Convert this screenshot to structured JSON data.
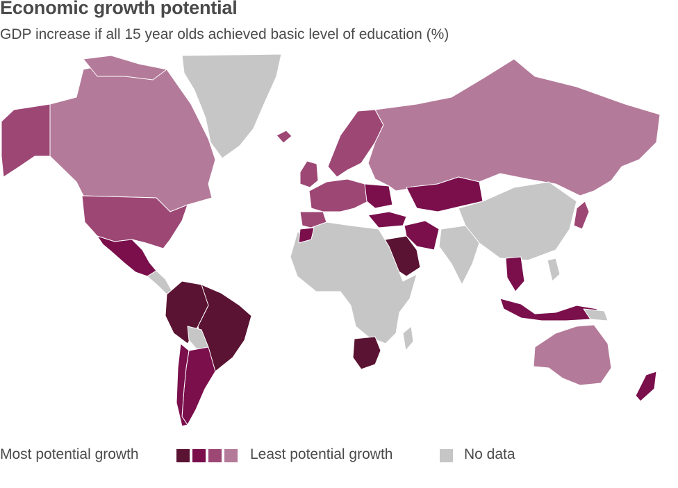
{
  "title": "Economic growth potential",
  "subtitle": "GDP increase if all 15 year olds achieved basic level of education (%)",
  "legend": {
    "most_label": "Most potential growth",
    "least_label": "Least potential growth",
    "nodata_label": "No data"
  },
  "colors": {
    "level_1": "#5a1332",
    "level_2": "#7a0f4c",
    "level_3": "#9d4775",
    "level_4": "#b47a9a",
    "no_data": "#c6c6c6",
    "border": "#ffffff"
  },
  "regions": [
    {
      "name": "Greenland",
      "level": "no_data"
    },
    {
      "name": "Canada",
      "level": "level_4"
    },
    {
      "name": "Alaska",
      "level": "level_3"
    },
    {
      "name": "United States",
      "level": "level_3"
    },
    {
      "name": "Mexico",
      "level": "level_2"
    },
    {
      "name": "Brazil",
      "level": "level_1"
    },
    {
      "name": "Argentina",
      "level": "level_2"
    },
    {
      "name": "Chile",
      "level": "level_2"
    },
    {
      "name": "Russia",
      "level": "level_4"
    },
    {
      "name": "Kazakhstan",
      "level": "level_2"
    },
    {
      "name": "China",
      "level": "no_data"
    },
    {
      "name": "Africa",
      "level": "no_data"
    },
    {
      "name": "South Africa",
      "level": "level_1"
    },
    {
      "name": "Saudi Arabia",
      "level": "level_1"
    },
    {
      "name": "Iran",
      "level": "level_2"
    },
    {
      "name": "Indonesia",
      "level": "level_2"
    },
    {
      "name": "Australia",
      "level": "level_4"
    },
    {
      "name": "New Zealand",
      "level": "level_2"
    }
  ]
}
